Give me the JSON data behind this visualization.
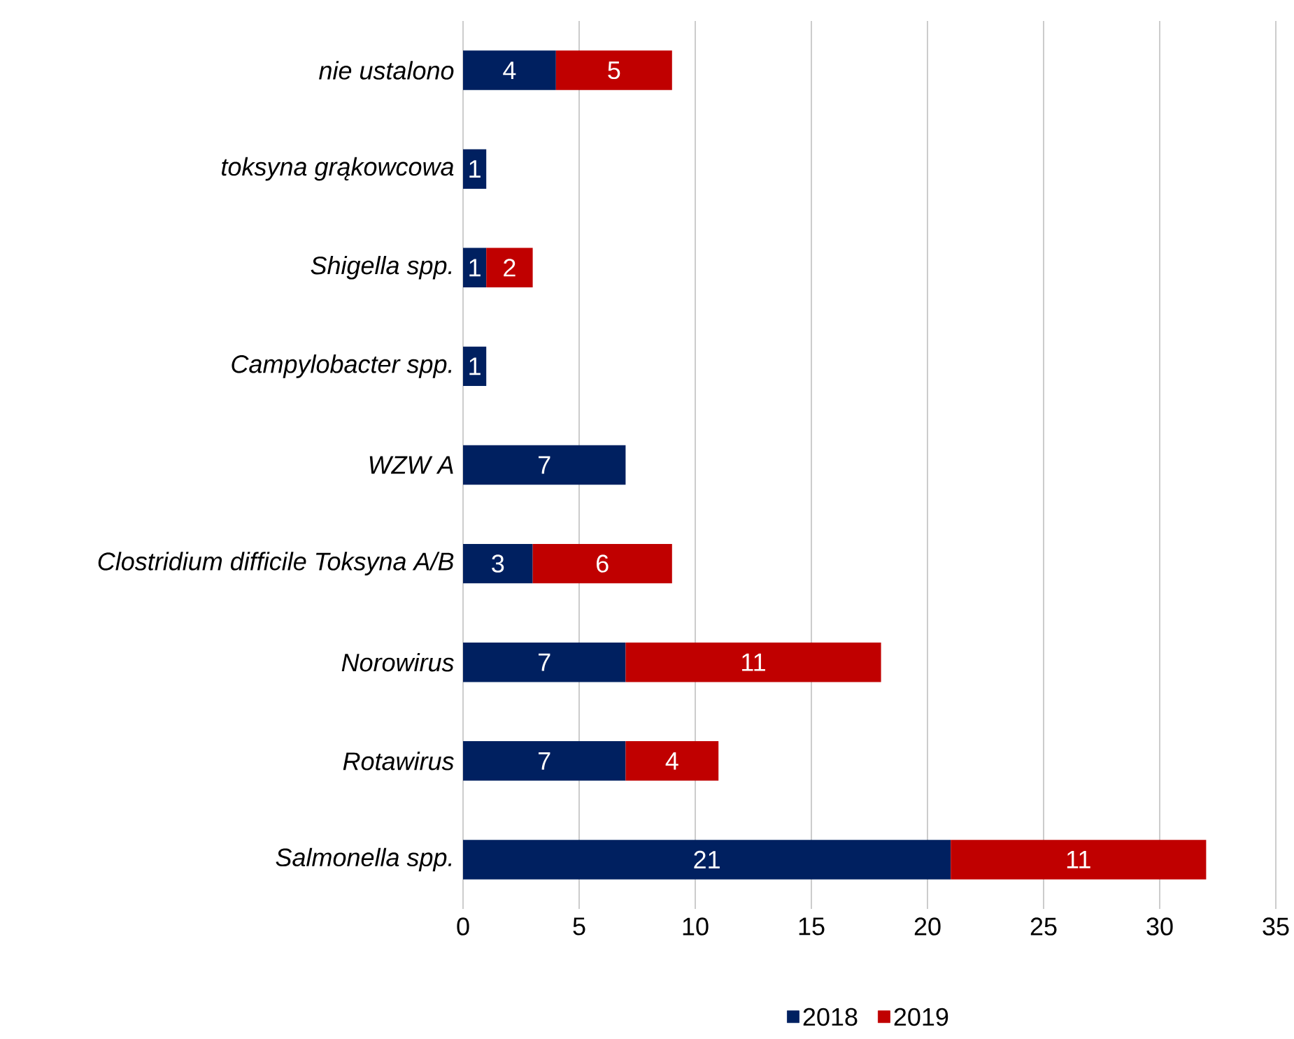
{
  "chart_data": {
    "type": "bar",
    "orientation": "horizontal",
    "stacked": true,
    "categories": [
      "nie ustalono",
      "toksyna grąkowcowa",
      "Shigella spp.",
      "Campylobacter spp.",
      "WZW A",
      "Clostridium difficile Toksyna A/B",
      "Norowirus",
      "Rotawirus",
      "Salmonella spp."
    ],
    "series": [
      {
        "name": "2018",
        "color": "#002060",
        "values": [
          4,
          1,
          1,
          1,
          7,
          3,
          7,
          7,
          21
        ]
      },
      {
        "name": "2019",
        "color": "#c00000",
        "values": [
          5,
          null,
          2,
          null,
          null,
          6,
          11,
          4,
          11
        ]
      }
    ],
    "xlim": [
      0,
      35
    ],
    "xticks": [
      0,
      5,
      10,
      15,
      20,
      25,
      30,
      35
    ],
    "grid": "x",
    "legend": "bottom",
    "data_labels": true
  }
}
